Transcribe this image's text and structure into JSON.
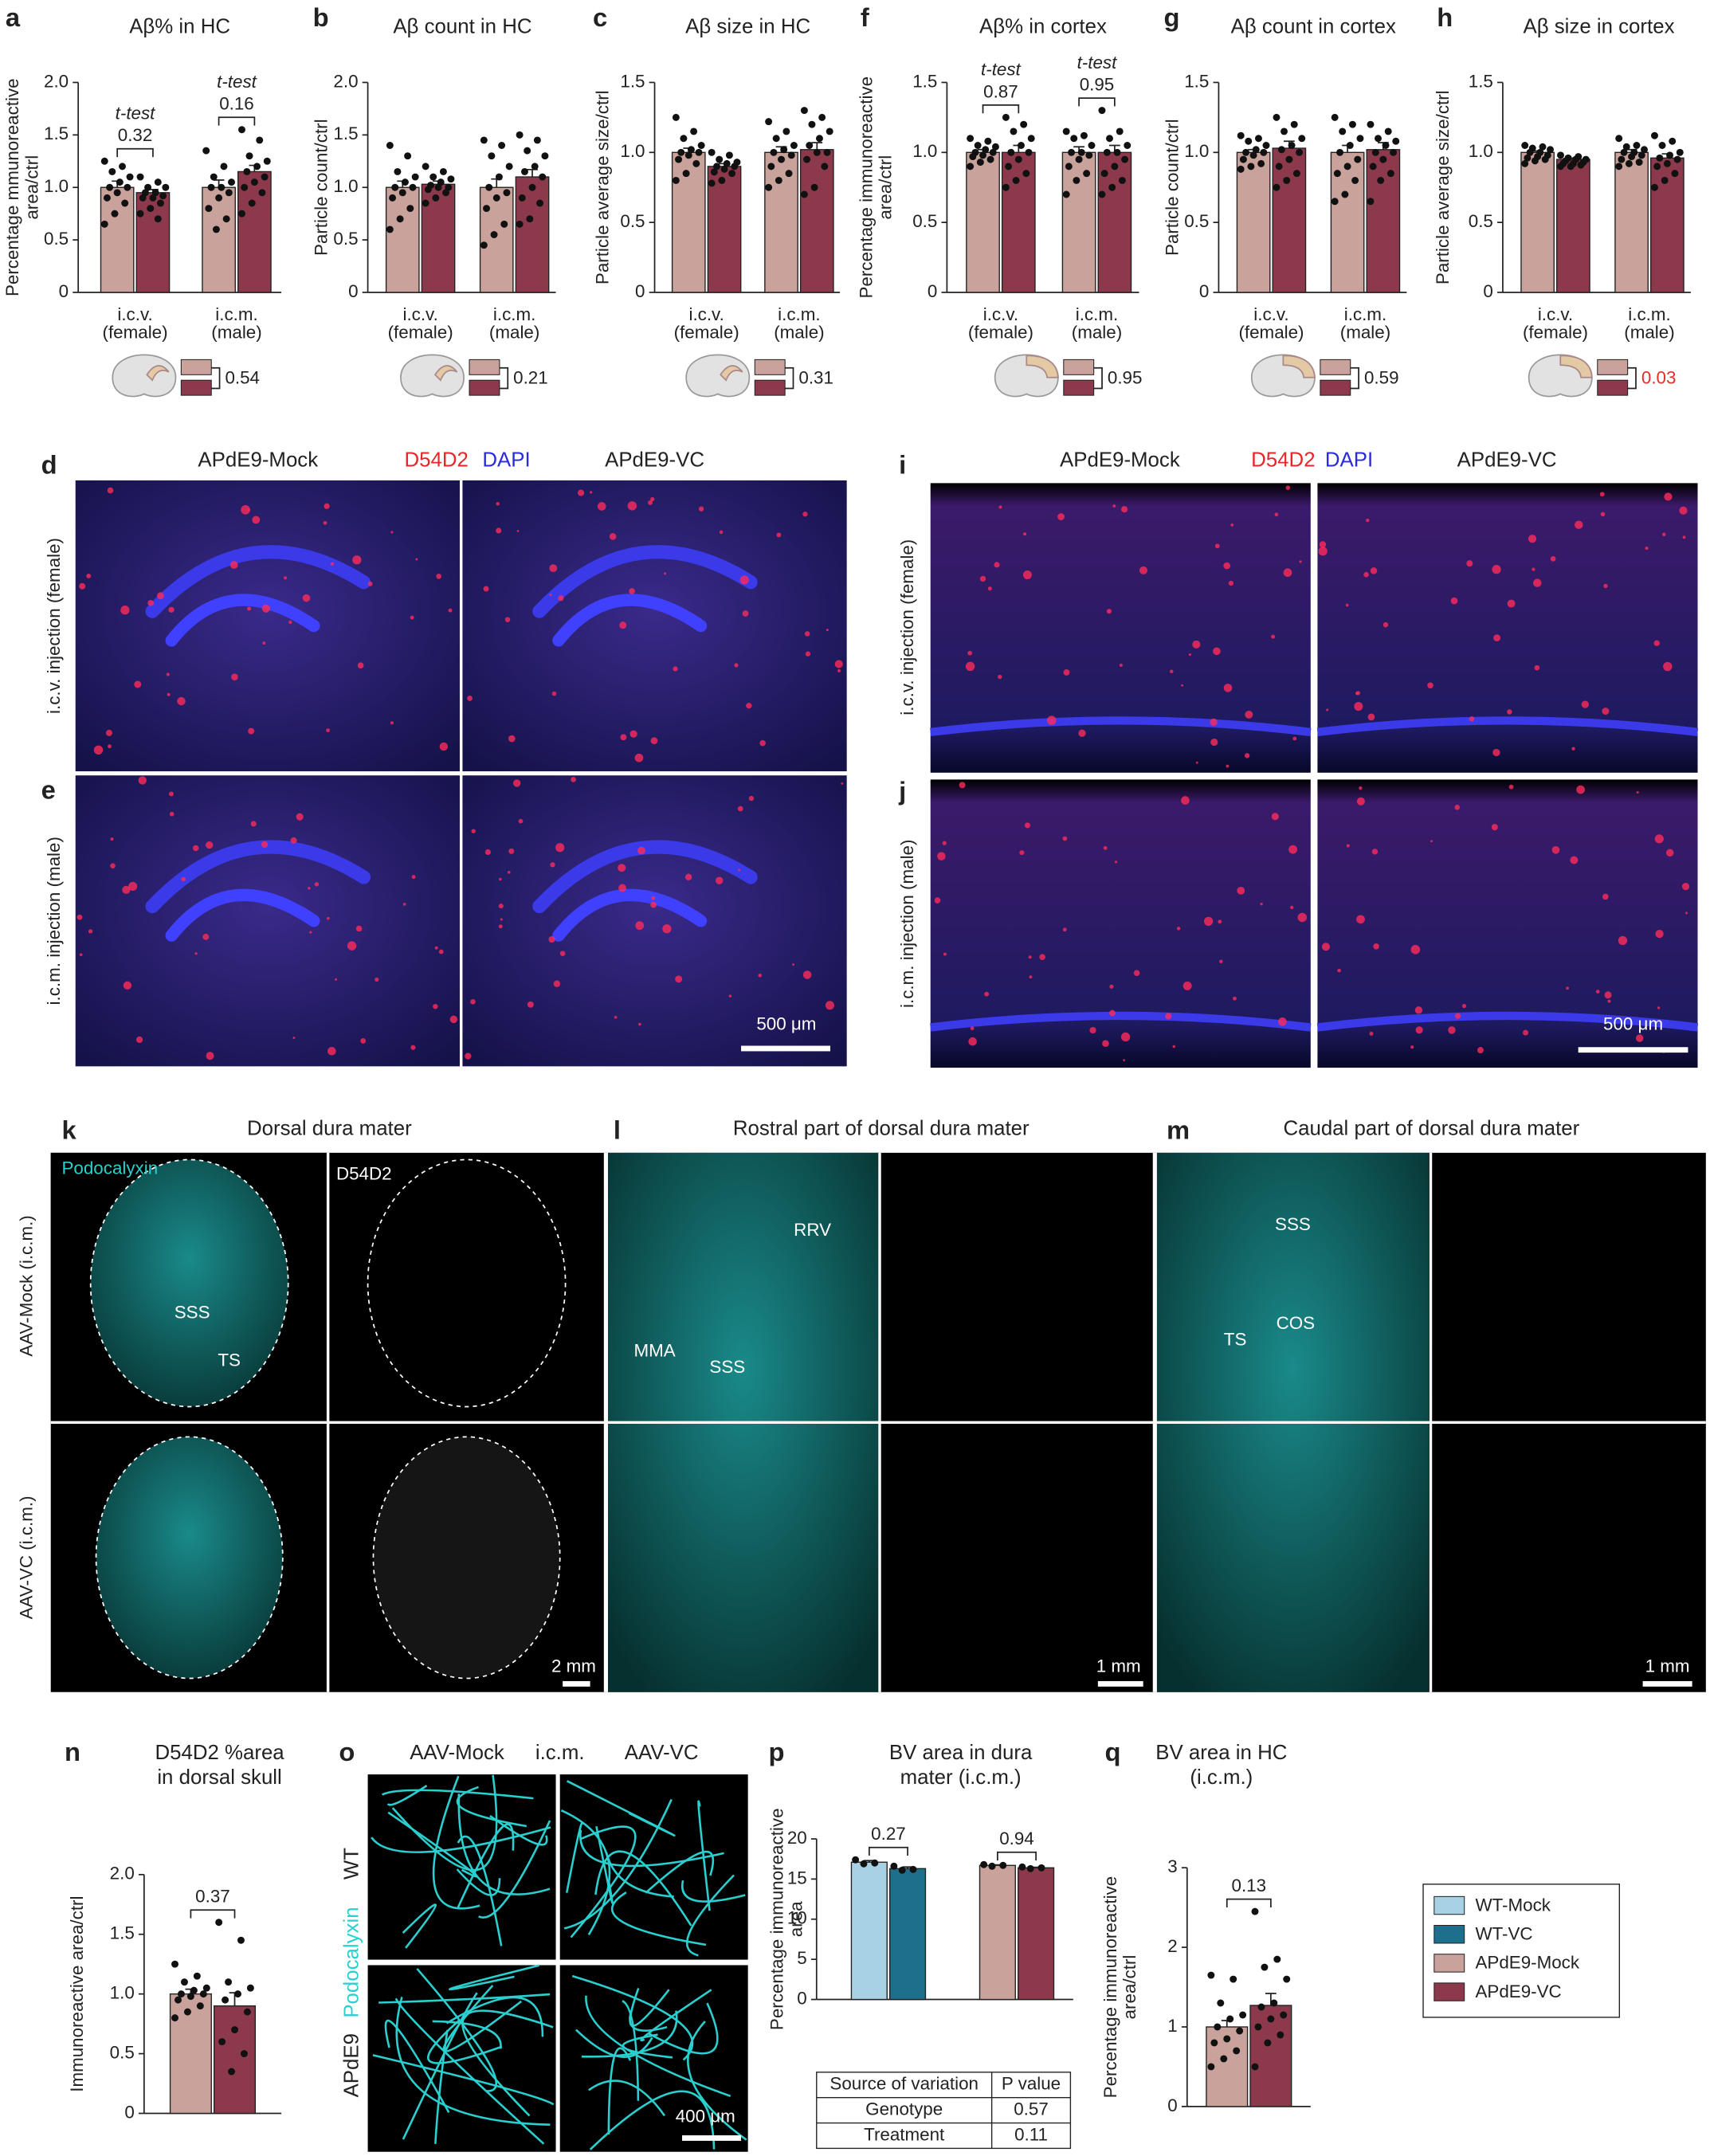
{
  "chart_data": [
    {
      "type": "bar",
      "panel": "a",
      "title": [
        "Aβ% in HC"
      ],
      "ylabel": [
        "Percentage mmunoreactive",
        "area/ctrl"
      ],
      "ylim": [
        0,
        2
      ],
      "yticks": [
        0,
        0.5,
        {
          "value": 1,
          "label": "1.0"
        },
        1.5,
        {
          "value": 2,
          "label": "2.0"
        }
      ],
      "categories": [
        [
          "i.c.v.",
          "(female)"
        ],
        [
          "i.c.m.",
          "(male)"
        ]
      ],
      "series": [
        {
          "color": "#c9a29c",
          "values": [
            1.0,
            1.0
          ],
          "errors": [
            0.06,
            0.07
          ],
          "points": [
            [
              1.25,
              1.2,
              1.15,
              1.1,
              1.05,
              1.0,
              1.0,
              0.95,
              0.9,
              0.85,
              0.75,
              0.65
            ],
            [
              1.35,
              1.2,
              1.1,
              1.05,
              1.0,
              1.0,
              0.95,
              0.9,
              0.8,
              0.7,
              0.6
            ]
          ]
        },
        {
          "color": "#8c3a4b",
          "values": [
            0.95,
            1.15
          ],
          "errors": [
            0.03,
            0.06
          ],
          "points": [
            [
              1.1,
              1.05,
              1.0,
              1.0,
              0.95,
              0.95,
              0.92,
              0.9,
              0.9,
              0.85,
              0.8,
              0.75,
              0.7
            ],
            [
              1.55,
              1.45,
              1.3,
              1.25,
              1.2,
              1.15,
              1.1,
              1.05,
              1.0,
              0.95,
              0.85,
              0.75
            ]
          ]
        }
      ],
      "tests": [
        {
          "label": "t-test",
          "p": "0.32"
        },
        {
          "label": "t-test",
          "p": "0.16"
        }
      ],
      "inset_p": "0.54"
    },
    {
      "type": "bar",
      "panel": "b",
      "title": [
        "Aβ count in HC"
      ],
      "ylabel": [
        "Particle count/ctrl"
      ],
      "ylim": [
        0,
        2
      ],
      "yticks": [
        0,
        0.5,
        {
          "value": 1,
          "label": "1.0"
        },
        1.5,
        {
          "value": 2,
          "label": "2.0"
        }
      ],
      "categories": [
        [
          "i.c.v.",
          "(female)"
        ],
        [
          "i.c.m.",
          "(male)"
        ]
      ],
      "series": [
        {
          "color": "#c9a29c",
          "values": [
            1.0,
            1.0
          ],
          "errors": [
            0.06,
            0.08
          ],
          "points": [
            [
              1.4,
              1.3,
              1.15,
              1.1,
              1.05,
              1.0,
              1.0,
              0.95,
              0.9,
              0.8,
              0.7,
              0.6
            ],
            [
              1.45,
              1.4,
              1.3,
              1.2,
              1.1,
              1.0,
              0.95,
              0.9,
              0.8,
              0.65,
              0.55,
              0.45
            ]
          ]
        },
        {
          "color": "#8c3a4b",
          "values": [
            1.03,
            1.1
          ],
          "errors": [
            0.03,
            0.07
          ],
          "points": [
            [
              1.2,
              1.15,
              1.1,
              1.08,
              1.05,
              1.02,
              1.0,
              1.0,
              0.98,
              0.95,
              0.9,
              0.85
            ],
            [
              1.5,
              1.45,
              1.35,
              1.3,
              1.2,
              1.15,
              1.1,
              1.0,
              0.9,
              0.85,
              0.7,
              0.65
            ]
          ]
        }
      ],
      "inset_p": "0.21"
    },
    {
      "type": "bar",
      "panel": "c",
      "title": [
        "Aβ size in HC"
      ],
      "ylabel": [
        "Particle average size/ctrl"
      ],
      "ylim": [
        0,
        1.5
      ],
      "yticks": [
        0,
        0.5,
        {
          "value": 1,
          "label": "1.0"
        },
        1.5
      ],
      "categories": [
        [
          "i.c.v.",
          "(female)"
        ],
        [
          "i.c.m.",
          "(male)"
        ]
      ],
      "series": [
        {
          "color": "#c9a29c",
          "values": [
            1.0,
            1.0
          ],
          "errors": [
            0.03,
            0.04
          ],
          "points": [
            [
              1.25,
              1.15,
              1.1,
              1.05,
              1.02,
              1.0,
              1.0,
              0.98,
              0.95,
              0.92,
              0.85,
              0.8
            ],
            [
              1.22,
              1.15,
              1.1,
              1.05,
              1.02,
              1.0,
              0.98,
              0.95,
              0.9,
              0.85,
              0.8,
              0.75
            ]
          ]
        },
        {
          "color": "#8c3a4b",
          "values": [
            0.9,
            1.02
          ],
          "errors": [
            0.02,
            0.05
          ],
          "points": [
            [
              1.0,
              0.98,
              0.95,
              0.93,
              0.92,
              0.9,
              0.9,
              0.88,
              0.86,
              0.85,
              0.8,
              0.78
            ],
            [
              1.3,
              1.25,
              1.2,
              1.15,
              1.1,
              1.05,
              1.0,
              1.0,
              0.95,
              0.9,
              0.75,
              0.7
            ]
          ]
        }
      ],
      "inset_p": "0.31"
    },
    {
      "type": "bar",
      "panel": "f",
      "title": [
        "Aβ% in cortex"
      ],
      "ylabel": [
        "Percentage immunoreactive",
        "area/ctrl"
      ],
      "ylim": [
        0,
        1.5
      ],
      "yticks": [
        0,
        0.5,
        {
          "value": 1,
          "label": "1.0"
        },
        1.5
      ],
      "categories": [
        [
          "i.c.v.",
          "(female)"
        ],
        [
          "i.c.m.",
          "(male)"
        ]
      ],
      "series": [
        {
          "color": "#c9a29c",
          "values": [
            1.0,
            1.0
          ],
          "errors": [
            0.02,
            0.04
          ],
          "points": [
            [
              1.1,
              1.08,
              1.05,
              1.04,
              1.02,
              1.0,
              1.0,
              0.98,
              0.97,
              0.95,
              0.93,
              0.9
            ],
            [
              1.15,
              1.12,
              1.1,
              1.05,
              1.0,
              1.0,
              0.98,
              0.95,
              0.9,
              0.85,
              0.8,
              0.7
            ]
          ]
        },
        {
          "color": "#8c3a4b",
          "values": [
            1.0,
            1.0
          ],
          "errors": [
            0.05,
            0.05
          ],
          "points": [
            [
              1.25,
              1.2,
              1.15,
              1.1,
              1.05,
              1.0,
              1.0,
              0.95,
              0.9,
              0.85,
              0.8,
              0.75
            ],
            [
              1.3,
              1.15,
              1.1,
              1.05,
              1.0,
              1.0,
              0.95,
              0.9,
              0.85,
              0.8,
              0.75,
              0.7
            ]
          ]
        }
      ],
      "tests": [
        {
          "label": "t-test",
          "p": "0.87"
        },
        {
          "label": "t-test",
          "p": "0.95"
        }
      ],
      "inset_p": "0.95"
    },
    {
      "type": "bar",
      "panel": "g",
      "title": [
        "Aβ count in cortex"
      ],
      "ylabel": [
        "Particle count/ctrl"
      ],
      "ylim": [
        0,
        1.5
      ],
      "yticks": [
        0,
        0.5,
        {
          "value": 1,
          "label": "1.0"
        },
        1.5
      ],
      "categories": [
        [
          "i.c.v.",
          "(female)"
        ],
        [
          "i.c.m.",
          "(male)"
        ]
      ],
      "series": [
        {
          "color": "#c9a29c",
          "values": [
            1.0,
            1.0
          ],
          "errors": [
            0.02,
            0.05
          ],
          "points": [
            [
              1.12,
              1.1,
              1.08,
              1.05,
              1.02,
              1.0,
              1.0,
              0.98,
              0.95,
              0.92,
              0.9,
              0.88
            ],
            [
              1.25,
              1.2,
              1.15,
              1.1,
              1.05,
              1.0,
              0.95,
              0.9,
              0.85,
              0.8,
              0.7,
              0.65
            ]
          ]
        },
        {
          "color": "#8c3a4b",
          "values": [
            1.03,
            1.02
          ],
          "errors": [
            0.05,
            0.05
          ],
          "points": [
            [
              1.25,
              1.2,
              1.15,
              1.1,
              1.05,
              1.02,
              1.0,
              0.95,
              0.9,
              0.85,
              0.8,
              0.75
            ],
            [
              1.2,
              1.15,
              1.1,
              1.08,
              1.05,
              1.0,
              1.0,
              0.95,
              0.9,
              0.85,
              0.8,
              0.65
            ]
          ]
        }
      ],
      "inset_p": "0.59"
    },
    {
      "type": "bar",
      "panel": "h",
      "title": [
        "Aβ size in cortex"
      ],
      "ylabel": [
        "Particle average size/ctrl"
      ],
      "ylim": [
        0,
        1.5
      ],
      "yticks": [
        0,
        0.5,
        {
          "value": 1,
          "label": "1.0"
        },
        1.5
      ],
      "categories": [
        [
          "i.c.v.",
          "(female)"
        ],
        [
          "i.c.m.",
          "(male)"
        ]
      ],
      "series": [
        {
          "color": "#c9a29c",
          "values": [
            1.0,
            1.0
          ],
          "errors": [
            0.01,
            0.02
          ],
          "points": [
            [
              1.05,
              1.04,
              1.03,
              1.02,
              1.0,
              1.0,
              0.98,
              0.97,
              0.96,
              0.95,
              0.94,
              0.92
            ],
            [
              1.1,
              1.05,
              1.04,
              1.02,
              1.0,
              1.0,
              0.98,
              0.97,
              0.95,
              0.93,
              0.92,
              0.9
            ]
          ]
        },
        {
          "color": "#8c3a4b",
          "values": [
            0.95,
            0.96
          ],
          "errors": [
            0.01,
            0.03
          ],
          "points": [
            [
              0.98,
              0.97,
              0.96,
              0.95,
              0.95,
              0.94,
              0.93,
              0.92,
              0.92,
              0.91,
              0.9,
              0.9
            ],
            [
              1.12,
              1.08,
              1.05,
              1.0,
              0.98,
              0.96,
              0.95,
              0.92,
              0.9,
              0.85,
              0.8,
              0.75
            ]
          ]
        }
      ],
      "inset_p": "0.03",
      "inset_p_color": "#e0302a"
    },
    {
      "type": "bar",
      "panel": "n",
      "title": [
        "D54D2 %area",
        "in dorsal skull"
      ],
      "ylabel": [
        "Immunoreactive area/ctrl"
      ],
      "ylim": [
        0,
        2
      ],
      "yticks": [
        0,
        0.5,
        {
          "value": 1,
          "label": "1.0"
        },
        1.5,
        {
          "value": 2,
          "label": "2.0"
        }
      ],
      "categories": [
        null
      ],
      "series": [
        {
          "color": "#c9a29c",
          "values": [
            1.0
          ],
          "errors": [
            0.04
          ],
          "points": [
            [
              1.25,
              1.15,
              1.1,
              1.05,
              1.03,
              1.0,
              1.0,
              0.98,
              0.95,
              0.9,
              0.85,
              0.8
            ]
          ]
        },
        {
          "color": "#8c3a4b",
          "values": [
            0.9
          ],
          "errors": [
            0.11
          ],
          "points": [
            [
              1.6,
              1.45,
              1.1,
              1.05,
              1.0,
              0.95,
              0.85,
              0.7,
              0.6,
              0.5,
              0.35
            ]
          ]
        }
      ],
      "tests": [
        {
          "p": "0.37"
        }
      ]
    },
    {
      "type": "bar",
      "panel": "p",
      "title": [
        "BV area in dura",
        "mater (i.c.m.)"
      ],
      "ylabel": [
        "Percentage immunoreactive",
        "area"
      ],
      "ylim": [
        0,
        20
      ],
      "yticks": [
        0,
        5,
        10,
        15,
        20
      ],
      "categories": [
        null,
        null
      ],
      "series": [
        {
          "name": "WT-Mock",
          "color": "#a9d1e5",
          "values": [
            17.1,
            null
          ],
          "errors": [
            0.2,
            null
          ],
          "points": [
            [
              17.4,
              17.0,
              16.9
            ],
            null
          ]
        },
        {
          "name": "WT-VC",
          "color": "#1e6f8c",
          "values": [
            16.3,
            null
          ],
          "errors": [
            0.2,
            null
          ],
          "points": [
            [
              16.6,
              16.2,
              16.1
            ],
            null
          ]
        },
        {
          "name": "APdE9-Mock",
          "color": "#c9a29c",
          "values": [
            null,
            16.7
          ],
          "errors": [
            null,
            0.07
          ],
          "points": [
            null,
            [
              16.8,
              16.7,
              16.6
            ]
          ]
        },
        {
          "name": "APdE9-VC",
          "color": "#8c3a4b",
          "values": [
            null,
            16.4
          ],
          "errors": [
            null,
            0.07
          ],
          "points": [
            null,
            [
              16.5,
              16.4,
              16.3
            ]
          ]
        }
      ],
      "tests": [
        {
          "p": "0.27"
        },
        {
          "p": "0.94"
        }
      ],
      "legend": "right",
      "table": {
        "header": [
          "Source of variation",
          "P value"
        ],
        "rows": [
          [
            "Genotype",
            "0.57"
          ],
          [
            "Treatment",
            "0.11"
          ]
        ]
      }
    },
    {
      "type": "bar",
      "panel": "q",
      "title": [
        "BV area in HC",
        "(i.c.m.)"
      ],
      "ylabel": [
        "Percentage immunoreactive",
        "area/ctrl"
      ],
      "ylim": [
        0,
        3
      ],
      "yticks": [
        0,
        1,
        2,
        3
      ],
      "categories": [
        null
      ],
      "series": [
        {
          "color": "#c9a29c",
          "values": [
            1.0
          ],
          "errors": [
            0.08
          ],
          "points": [
            [
              1.65,
              1.6,
              1.3,
              1.15,
              1.1,
              1.0,
              0.95,
              0.85,
              0.8,
              0.7,
              0.6,
              0.5
            ]
          ]
        },
        {
          "color": "#8c3a4b",
          "values": [
            1.27
          ],
          "errors": [
            0.15
          ],
          "points": [
            [
              2.45,
              1.85,
              1.75,
              1.6,
              1.3,
              1.25,
              1.15,
              1.1,
              1.0,
              0.9,
              0.8,
              0.5
            ]
          ]
        }
      ],
      "tests": [
        {
          "p": "0.13"
        }
      ]
    }
  ],
  "images": {
    "de": {
      "letters": [
        "d",
        "e"
      ],
      "cols": [
        "APdE9-Mock",
        "APdE9-VC"
      ],
      "stains": [
        "D54D2",
        "DAPI"
      ],
      "rows": [
        "i.c.v. injection (female)",
        "i.c.m. injection (male)"
      ],
      "scale": "500 μm"
    },
    "ij": {
      "letters": [
        "i",
        "j"
      ],
      "cols": [
        "APdE9-Mock",
        "APdE9-VC"
      ],
      "stains": [
        "D54D2",
        "DAPI"
      ],
      "rows": [
        "i.c.v. injection (female)",
        "i.c.m. injection (male)"
      ],
      "scale": "500 μm"
    },
    "k": {
      "letter": "k",
      "title": "Dorsal dura mater",
      "stains": [
        "Podocalyxin",
        "D54D2"
      ],
      "rows": [
        "AAV-Mock (i.c.m.)",
        "AAV-VC (i.c.m.)"
      ],
      "labels": [
        "SSS",
        "TS"
      ],
      "scale": "2 mm"
    },
    "l": {
      "letter": "l",
      "title": "Rostral part of dorsal dura mater",
      "labels": [
        "RRV",
        "MMA",
        "SSS"
      ],
      "scale": "1 mm"
    },
    "m": {
      "letter": "m",
      "title": "Caudal part of dorsal dura mater",
      "labels": [
        "SSS",
        "COS",
        "TS"
      ],
      "scale": "1 mm"
    },
    "o": {
      "letter": "o",
      "cols": [
        "AAV-Mock",
        "AAV-VC"
      ],
      "middle": "i.c.m.",
      "rows": [
        "WT",
        "APdE9"
      ],
      "stain": "Podocalyxin",
      "scale": "400 μm"
    }
  }
}
